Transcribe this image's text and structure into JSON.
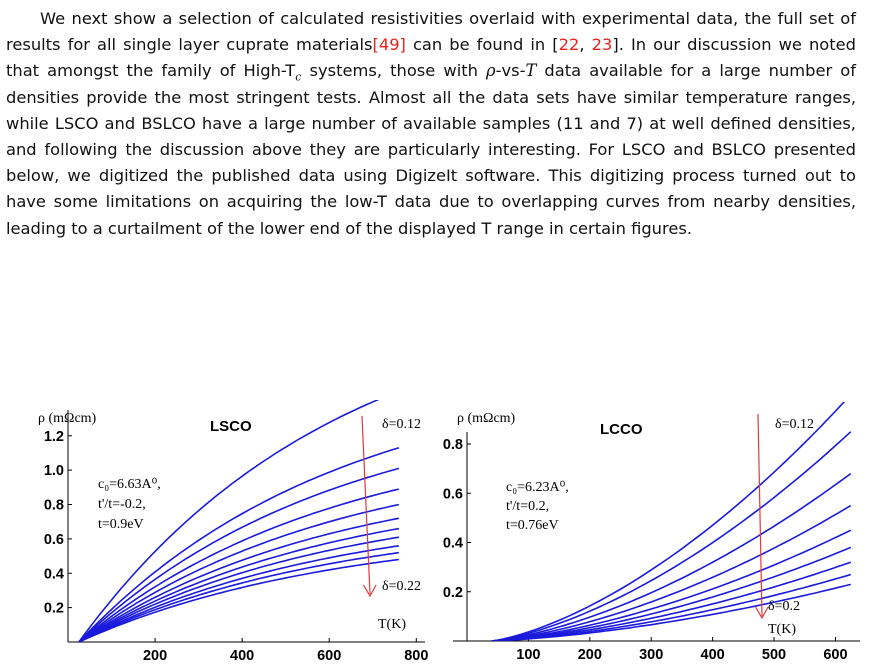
{
  "paragraph": {
    "p1": "We next show a selection of calculated resistivities overlaid with experimental data, the full set of results for all single layer cuprate materials",
    "c49": "[49]",
    "p2": " can be found in [",
    "c22": "22",
    "p3": ", ",
    "c23": "23",
    "p4": "]. In our discussion we noted that amongst the family of High-T",
    "sub_c": "c",
    "p5": " systems, those with ",
    "rho": "ρ",
    "p6": "-vs-",
    "T": "T",
    "p7": " data available for a large number of densities provide the most stringent tests. Almost all the data sets have similar temperature ranges, while LSCO and BSLCO have a large number of available samples (11 and 7) at well defined densities, and following the discussion above they are particularly interesting. For LSCO and BSLCO presented below, we digitized the published data using DigizeIt software. This digitizing process turned out to have some limitations on acquiring the low-T data due to overlapping curves from nearby densities, leading to a curtailment of the lower end of the displayed T range in certain figures."
  },
  "chart_data": [
    {
      "type": "line",
      "title": "LSCO",
      "ylabel": "ρ (mΩcm)",
      "xlabel": "T(K)",
      "xticks": [
        "200",
        "400",
        "600",
        "800"
      ],
      "yticks": [
        "0.2",
        "0.4",
        "0.6",
        "0.8",
        "1.0",
        "1.2"
      ],
      "xlim": [
        0,
        820
      ],
      "ylim": [
        0,
        1.35
      ],
      "params": [
        "c₀=6.63A⁰,",
        "t'/t=-0.2,",
        "t=0.9eV"
      ],
      "arrow_top_label": "δ=0.12",
      "arrow_bottom_label": "δ=0.22",
      "line_color": "#1a1adc",
      "arrow_color": "#e0393e",
      "curve_shape": "sublinear",
      "x_start": 25,
      "x_end": 760,
      "end_values": [
        1.46,
        1.13,
        1.01,
        0.89,
        0.8,
        0.72,
        0.66,
        0.61,
        0.56,
        0.52,
        0.48
      ]
    },
    {
      "type": "line",
      "title": "LCCO",
      "ylabel": "ρ (mΩcm)",
      "xlabel": "T(K)",
      "xticks": [
        "100",
        "200",
        "300",
        "400",
        "500",
        "600"
      ],
      "yticks": [
        "0.2",
        "0.4",
        "0.6",
        "0.8"
      ],
      "xlim": [
        0,
        640
      ],
      "ylim": [
        0,
        0.93
      ],
      "params": [
        "c₀=6.23A⁰,",
        "t'/t=0.2,",
        "t=0.76eV"
      ],
      "arrow_top_label": "δ=0.12",
      "arrow_bottom_label": "δ=0.2",
      "line_color": "#1a1adc",
      "arrow_color": "#e0393e",
      "curve_shape": "superlinear",
      "x_start": 40,
      "x_end": 625,
      "end_values": [
        1.0,
        0.85,
        0.68,
        0.55,
        0.45,
        0.38,
        0.32,
        0.27,
        0.23
      ]
    }
  ]
}
